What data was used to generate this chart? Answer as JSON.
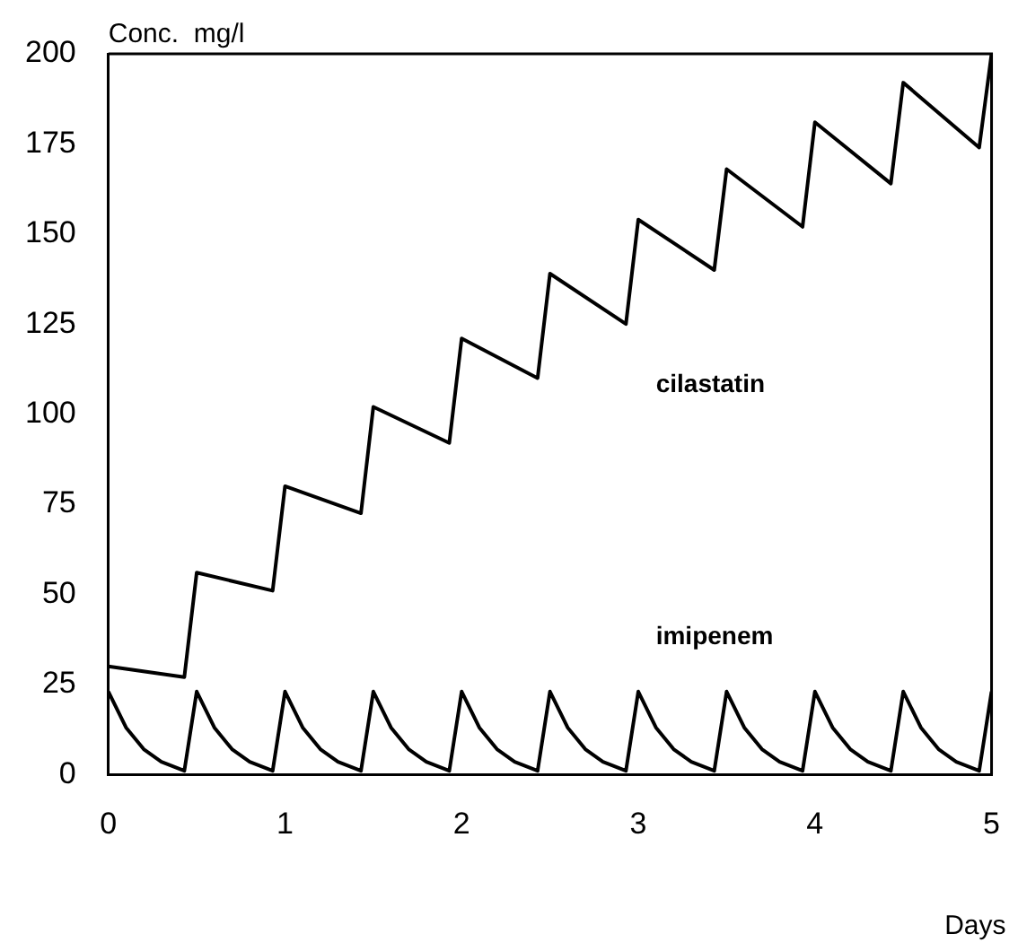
{
  "chart_data": {
    "type": "line",
    "xlabel": "Days",
    "ylabel": "Conc.  mg/l",
    "xlim": [
      0,
      5
    ],
    "xticks": [
      0,
      1,
      2,
      3,
      4,
      5
    ],
    "ylim": [
      0,
      200
    ],
    "yticks": [
      0,
      25,
      50,
      75,
      100,
      125,
      150,
      175,
      200
    ],
    "grid": false,
    "legend": false,
    "marker": "none",
    "line_style": "solid",
    "series": [
      {
        "name": "cilastatin",
        "color": "#000000",
        "x": [
          0,
          0.43,
          0.5,
          0.93,
          1.0,
          1.43,
          1.5,
          1.93,
          2.0,
          2.43,
          2.5,
          2.93,
          3.0,
          3.43,
          3.5,
          3.93,
          4.0,
          4.43,
          4.5,
          4.93,
          5.0
        ],
        "values": [
          30,
          27,
          56,
          51,
          80,
          72.5,
          102,
          92,
          121,
          110,
          139,
          125,
          154,
          140,
          168,
          152,
          181,
          164,
          192,
          174,
          200
        ]
      },
      {
        "name": "imipenem",
        "color": "#000000",
        "x": [
          0,
          0.1,
          0.2,
          0.3,
          0.43,
          0.5,
          0.6,
          0.7,
          0.8,
          0.93,
          1.0,
          1.1,
          1.2,
          1.3,
          1.43,
          1.5,
          1.6,
          1.7,
          1.8,
          1.93,
          2.0,
          2.1,
          2.2,
          2.3,
          2.43,
          2.5,
          2.6,
          2.7,
          2.8,
          2.93,
          3.0,
          3.1,
          3.2,
          3.3,
          3.43,
          3.5,
          3.6,
          3.7,
          3.8,
          3.93,
          4.0,
          4.1,
          4.2,
          4.3,
          4.43,
          4.5,
          4.6,
          4.7,
          4.8,
          4.93,
          5.0
        ],
        "values": [
          23,
          13,
          7,
          3.5,
          1,
          23,
          13,
          7,
          3.5,
          1,
          23,
          13,
          7,
          3.5,
          1,
          23,
          13,
          7,
          3.5,
          1,
          23,
          13,
          7,
          3.5,
          1,
          23,
          13,
          7,
          3.5,
          1,
          23,
          13,
          7,
          3.5,
          1,
          23,
          13,
          7,
          3.5,
          1,
          23,
          13,
          7,
          3.5,
          1,
          23,
          13,
          7,
          3.5,
          1,
          23
        ]
      }
    ]
  }
}
